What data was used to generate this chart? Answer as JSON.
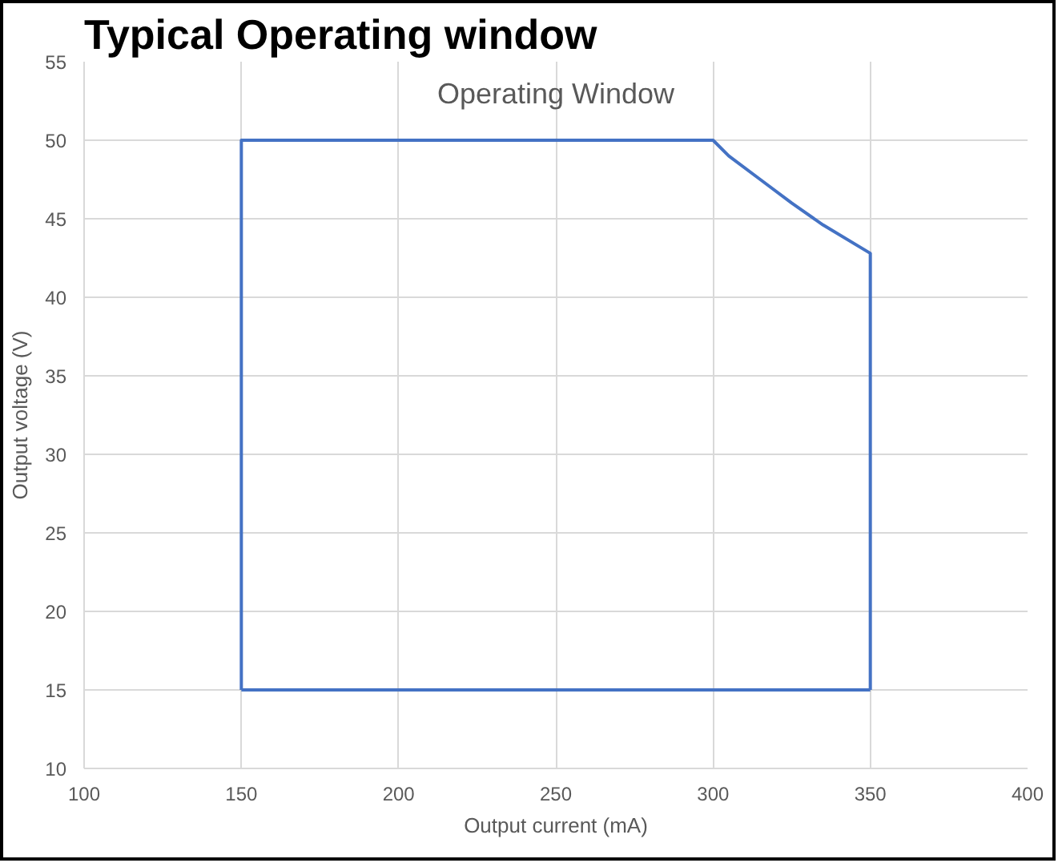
{
  "chart_data": {
    "type": "line",
    "title": "Typical Operating window",
    "subtitle": "Operating Window",
    "xlabel": "Output current (mA)",
    "ylabel": "Output voltage (V)",
    "x": [
      150,
      150,
      300,
      305,
      315,
      325,
      335,
      350,
      350
    ],
    "series": [
      {
        "color": "#4472c4",
        "values": [
          15,
          50,
          50,
          49,
          47.5,
          46,
          44.6,
          42.8,
          15
        ]
      },
      {
        "color": "#4472c4",
        "x": [
          150,
          350
        ],
        "values": [
          15,
          15
        ]
      }
    ],
    "xlim": [
      100,
      400
    ],
    "xticks": [
      100,
      150,
      200,
      250,
      300,
      350,
      400
    ],
    "ylim": [
      10,
      55
    ],
    "yticks": [
      10,
      15,
      20,
      25,
      30,
      35,
      40,
      45,
      50,
      55
    ],
    "grid": true,
    "marker": "none",
    "line_style": "solid"
  }
}
